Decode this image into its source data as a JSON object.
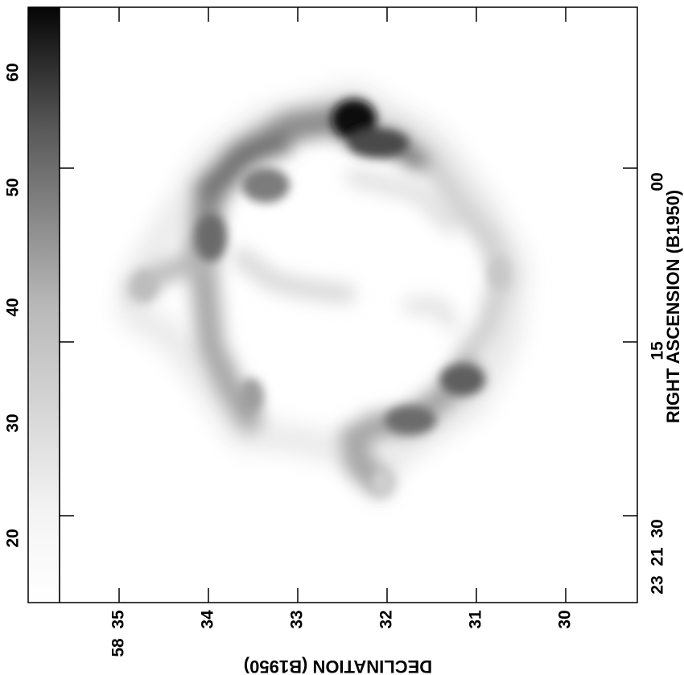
{
  "colorbar": {
    "ticks": [
      "20",
      "30",
      "40",
      "50",
      "60"
    ],
    "values": [
      20,
      30,
      40,
      50,
      60
    ],
    "range": [
      15,
      65
    ]
  },
  "declination_axis": {
    "title": "DECLINATION (B1950)",
    "degree_label": "58",
    "ticks": [
      "35",
      "34",
      "33",
      "32",
      "31",
      "30"
    ],
    "values": [
      35,
      34,
      33,
      32,
      31,
      30
    ]
  },
  "ra_axis": {
    "title": "RIGHT ASCENSION (B1950)",
    "hour_min_label": "23  21  30",
    "ticks": [
      "00",
      "15"
    ],
    "values": [
      0,
      15
    ]
  }
}
